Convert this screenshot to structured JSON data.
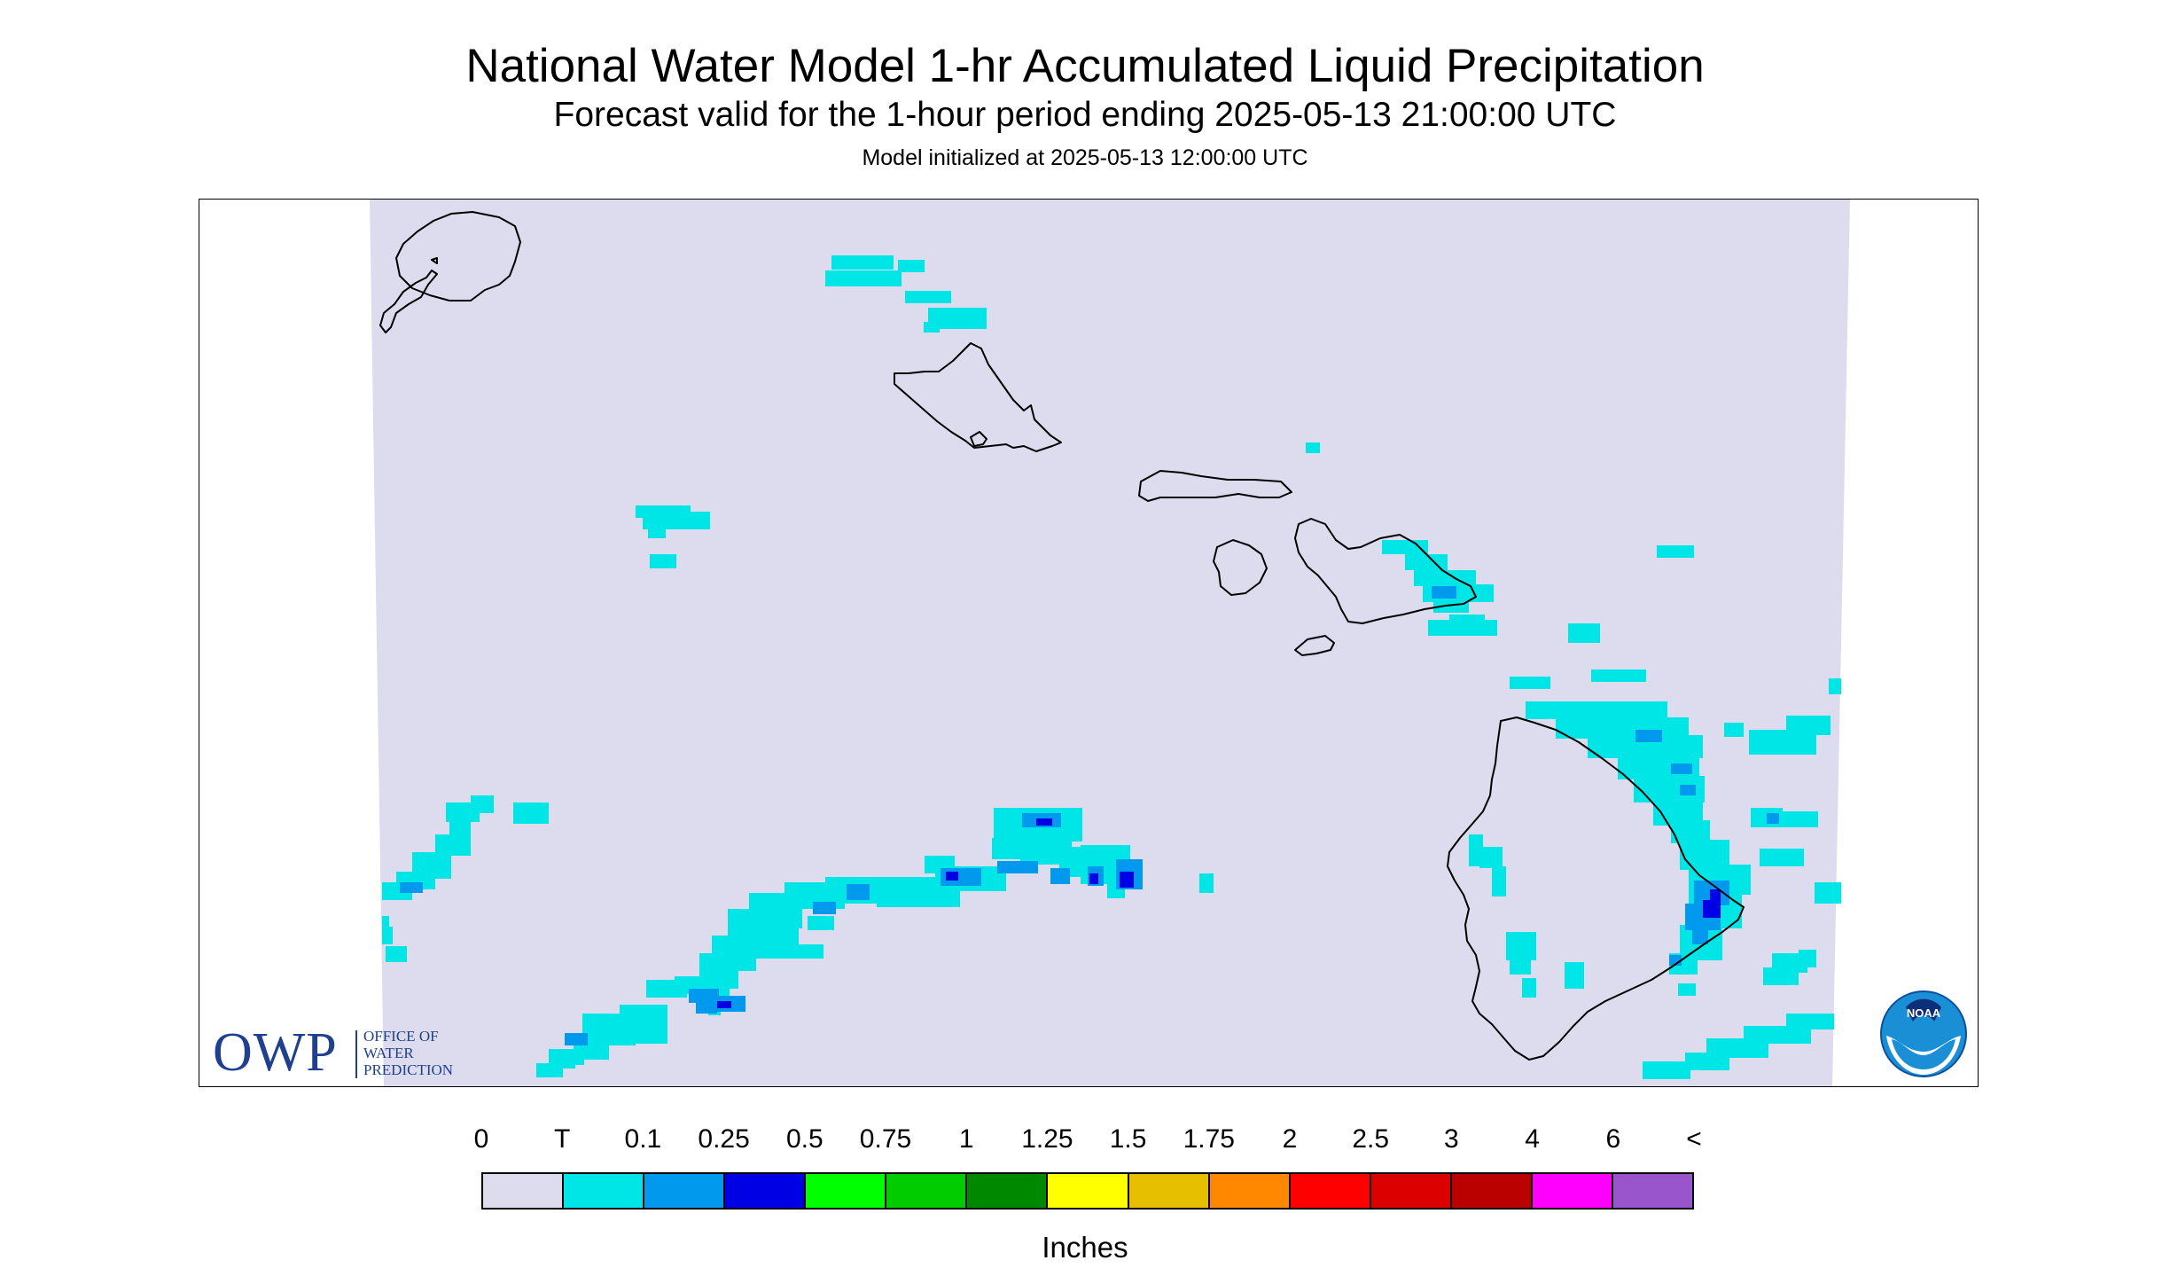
{
  "title": "National Water Model 1-hr Accumulated Liquid Precipitation",
  "subtitle": "Forecast valid for the 1-hour period ending 2025-05-13 21:00:00 UTC",
  "init_line": "Model initialized at 2025-05-13 12:00:00 UTC",
  "owp_logo": {
    "acronym": "OWP",
    "line1": "OFFICE OF",
    "line2": "WATER",
    "line3": "PREDICTION"
  },
  "noaa_logo": {
    "text": "NOAA"
  },
  "legend": {
    "labels": [
      "0",
      "T",
      "0.1",
      "0.25",
      "0.5",
      "0.75",
      "1",
      "1.25",
      "1.5",
      "1.75",
      "2",
      "2.5",
      "3",
      "4",
      "6",
      "<"
    ],
    "colors": [
      "#dcdcee",
      "#00e5e5",
      "#0099ee",
      "#0000e5",
      "#00ff00",
      "#00cc00",
      "#008800",
      "#ffff00",
      "#e6c000",
      "#ff8800",
      "#ff0000",
      "#dd0000",
      "#bb0000",
      "#ff00ff",
      "#9955cc"
    ],
    "units": "Inches"
  },
  "colors": {
    "no_data": "#ffffff",
    "background_field": "#dcdcee",
    "trace": "#00e5e5",
    "tenth": "#0099ee",
    "quarter": "#0000e5",
    "coastline": "#000000",
    "owp_blue": "#1f3f8f"
  }
}
